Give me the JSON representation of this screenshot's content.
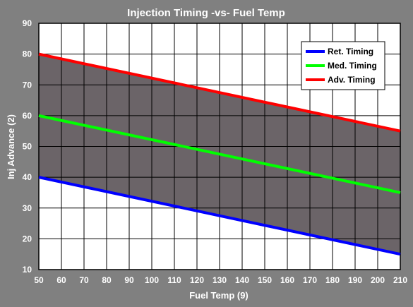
{
  "chart_data": {
    "type": "line",
    "title": "Injection Timing -vs- Fuel Temp",
    "xlabel": "Fuel Temp (9)",
    "ylabel": "Inj Advance (2)",
    "xlim": [
      50,
      210
    ],
    "ylim": [
      10,
      90
    ],
    "xticks": [
      50,
      60,
      70,
      80,
      90,
      100,
      110,
      120,
      130,
      140,
      150,
      160,
      170,
      180,
      190,
      200,
      210
    ],
    "yticks": [
      10,
      20,
      30,
      40,
      50,
      60,
      70,
      80,
      90
    ],
    "grid": true,
    "legend_position": "top-right",
    "shaded_band": {
      "from_series": "Ret. Timing",
      "to_series": "Adv. Timing",
      "color": "#6b6468"
    },
    "series": [
      {
        "name": "Ret. Timing",
        "color": "#0000ff",
        "x": [
          50,
          210
        ],
        "y": [
          40,
          15
        ]
      },
      {
        "name": "Med. Timing",
        "color": "#00ff00",
        "x": [
          50,
          210
        ],
        "y": [
          60,
          35
        ]
      },
      {
        "name": "Adv. Timing",
        "color": "#ff0000",
        "x": [
          50,
          210
        ],
        "y": [
          80,
          55
        ]
      }
    ]
  },
  "colors": {
    "background": "#808080",
    "plot_area": "#ffffff",
    "grid": "#000000",
    "band": "#6b6468"
  }
}
